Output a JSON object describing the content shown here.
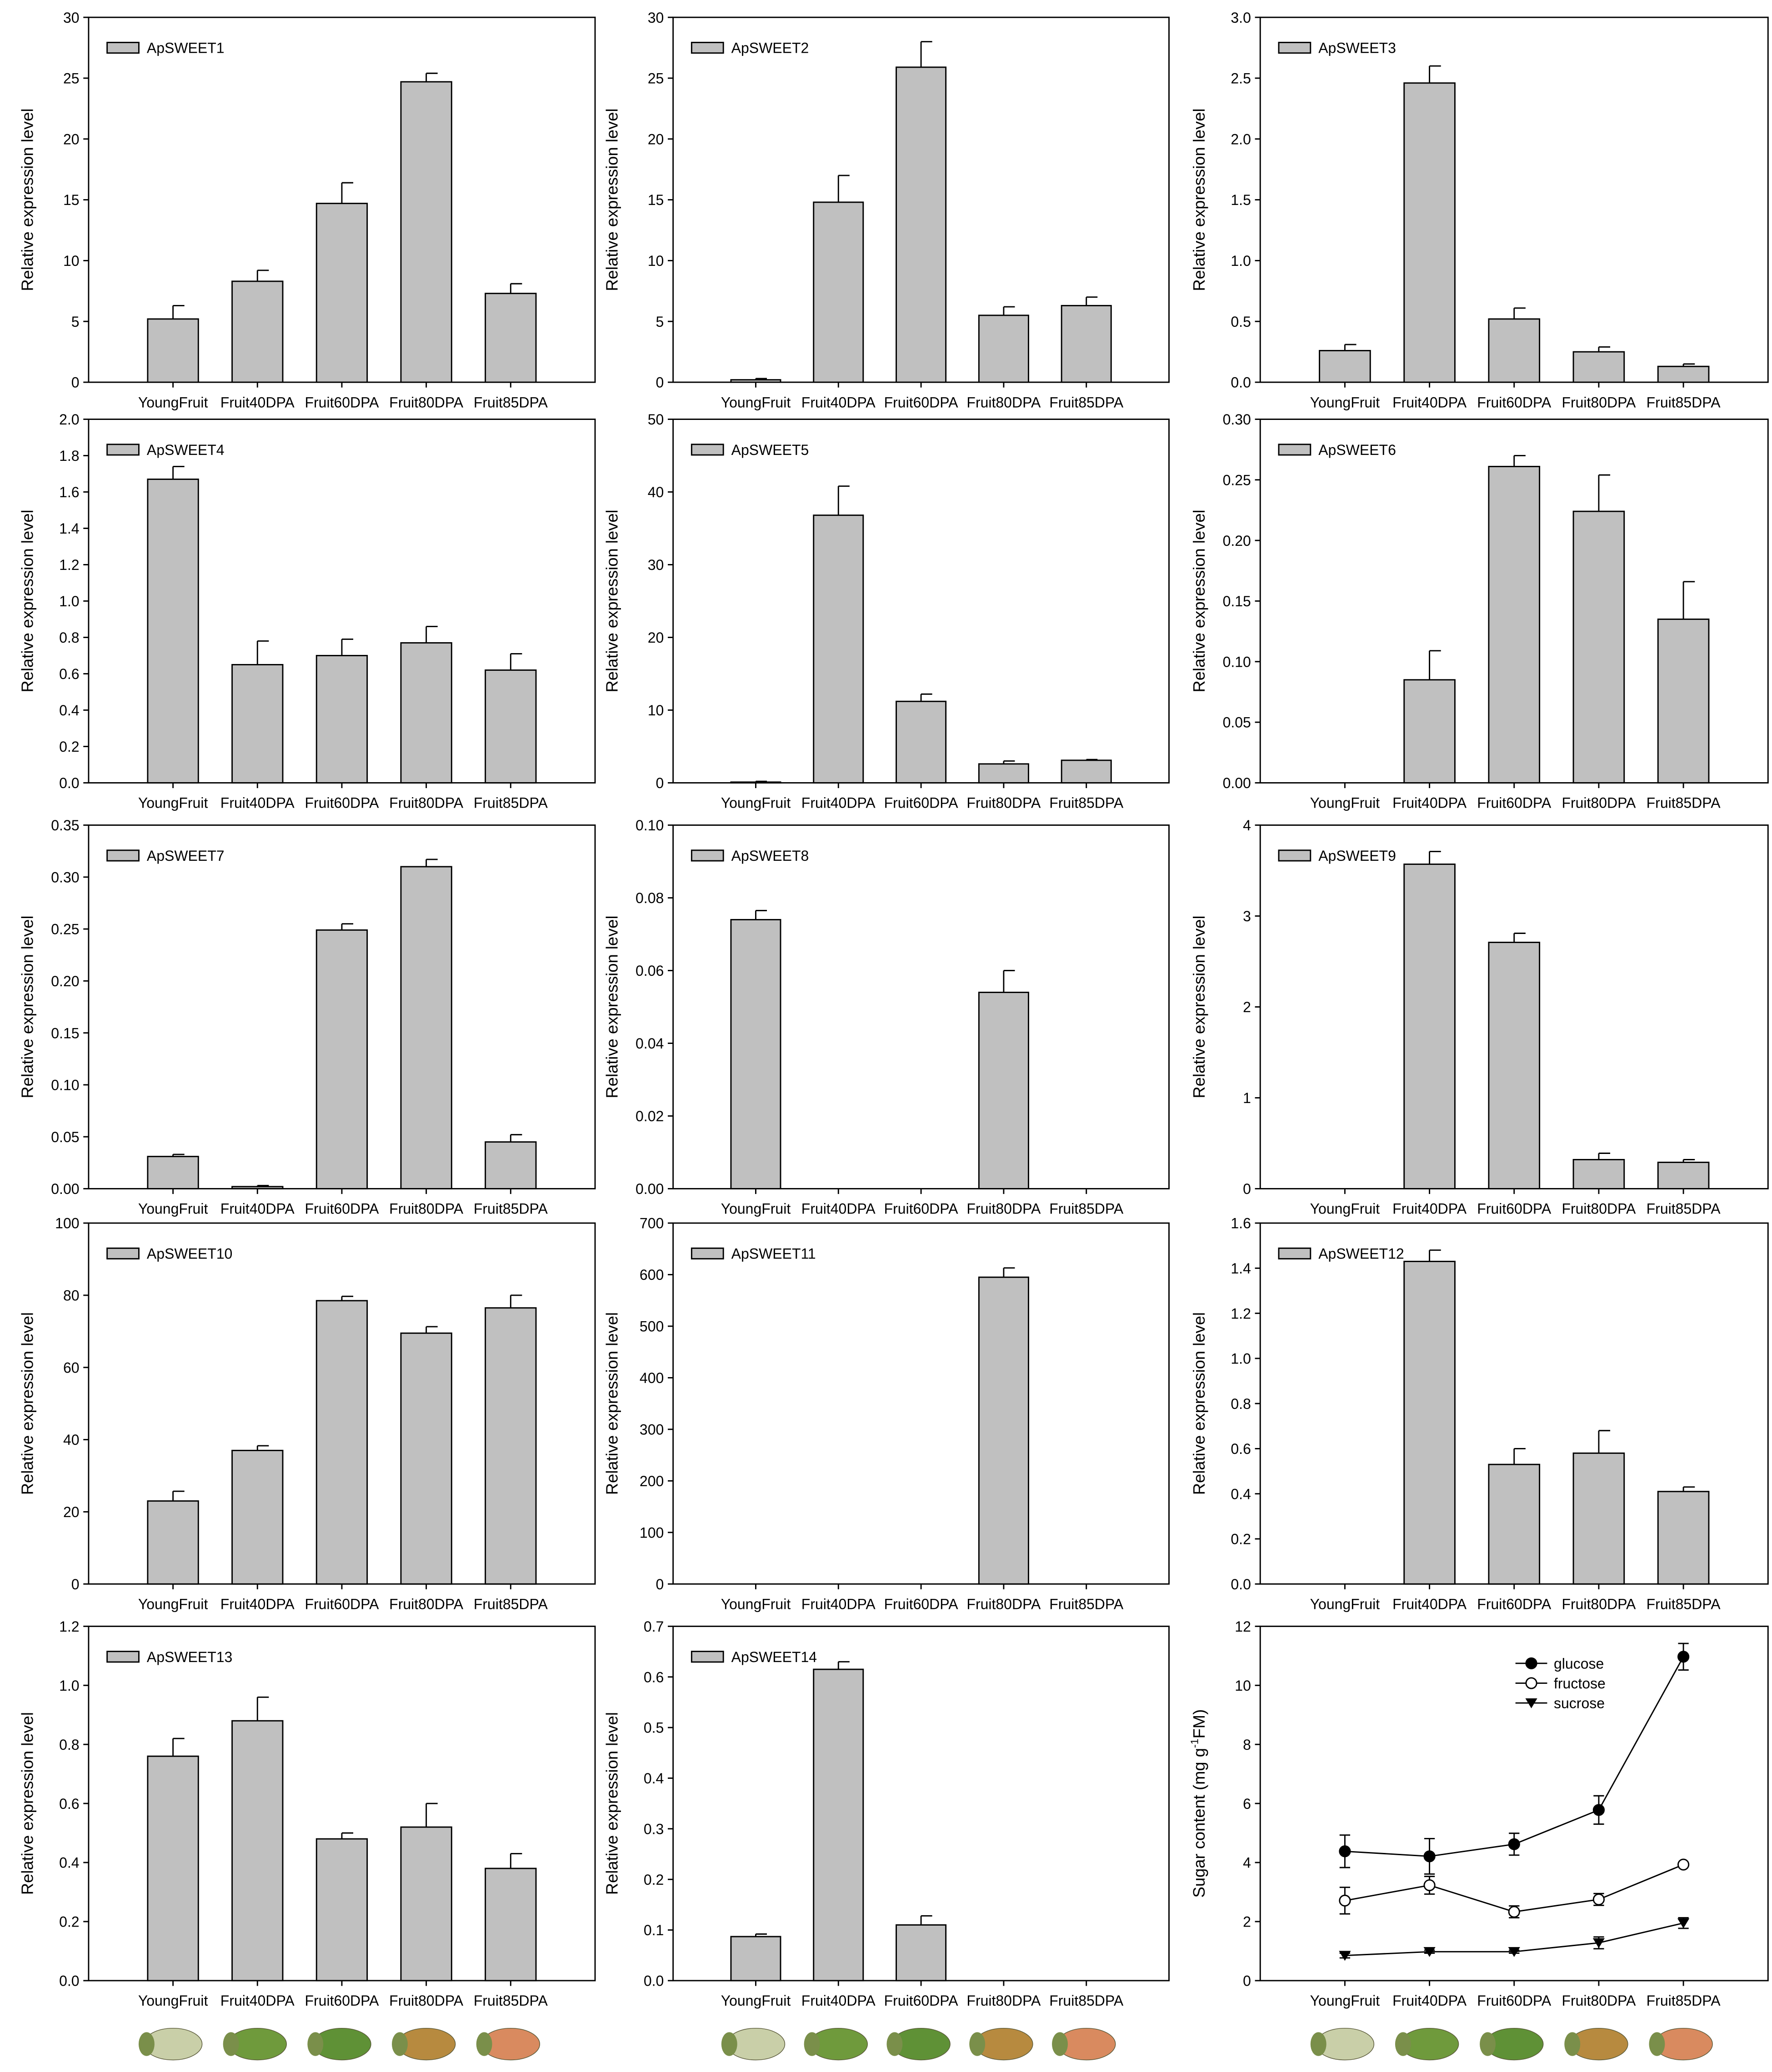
{
  "chart_data": [
    {
      "type": "bar",
      "legend": "ApSWEET1",
      "ylabel": "Relative expression level",
      "categories": [
        "YoungFruit",
        "Fruit40DPA",
        "Fruit60DPA",
        "Fruit80DPA",
        "Fruit85DPA"
      ],
      "ylim": [
        0,
        30
      ],
      "yticks": [
        "0",
        "5",
        "10",
        "15",
        "20",
        "25",
        "30"
      ],
      "values": [
        5.2,
        8.3,
        14.7,
        24.7,
        7.3
      ],
      "errors": [
        1.1,
        0.9,
        1.7,
        0.7,
        0.8
      ],
      "bar_color": "#c0c0c0"
    },
    {
      "type": "bar",
      "legend": "ApSWEET2",
      "ylabel": "Relative expression level",
      "categories": [
        "YoungFruit",
        "Fruit40DPA",
        "Fruit60DPA",
        "Fruit80DPA",
        "Fruit85DPA"
      ],
      "ylim": [
        0,
        30
      ],
      "yticks": [
        "0",
        "5",
        "10",
        "15",
        "20",
        "25",
        "30"
      ],
      "values": [
        0.2,
        14.8,
        25.9,
        5.5,
        6.3
      ],
      "errors": [
        0.1,
        2.2,
        2.1,
        0.7,
        0.7
      ],
      "bar_color": "#c0c0c0"
    },
    {
      "type": "bar",
      "legend": "ApSWEET3",
      "ylabel": "Relative expression level",
      "categories": [
        "YoungFruit",
        "Fruit40DPA",
        "Fruit60DPA",
        "Fruit80DPA",
        "Fruit85DPA"
      ],
      "ylim": [
        0,
        3
      ],
      "yticks": [
        "0.0",
        "0.5",
        "1.0",
        "1.5",
        "2.0",
        "2.5",
        "3.0"
      ],
      "values": [
        0.26,
        2.46,
        0.52,
        0.25,
        0.13
      ],
      "errors": [
        0.05,
        0.14,
        0.09,
        0.04,
        0.02
      ],
      "bar_color": "#c0c0c0"
    },
    {
      "type": "bar",
      "legend": "ApSWEET4",
      "ylabel": "Relative expression level",
      "categories": [
        "YoungFruit",
        "Fruit40DPA",
        "Fruit60DPA",
        "Fruit80DPA",
        "Fruit85DPA"
      ],
      "ylim": [
        0,
        2
      ],
      "yticks": [
        "0.0",
        "0.2",
        "0.4",
        "0.6",
        "0.8",
        "1.0",
        "1.2",
        "1.4",
        "1.6",
        "1.8",
        "2.0"
      ],
      "values": [
        1.67,
        0.65,
        0.7,
        0.77,
        0.62
      ],
      "errors": [
        0.07,
        0.13,
        0.09,
        0.09,
        0.09
      ],
      "bar_color": "#c0c0c0"
    },
    {
      "type": "bar",
      "legend": "ApSWEET5",
      "ylabel": "Relative expression level",
      "categories": [
        "YoungFruit",
        "Fruit40DPA",
        "Fruit60DPA",
        "Fruit80DPA",
        "Fruit85DPA"
      ],
      "ylim": [
        0,
        50
      ],
      "yticks": [
        "0",
        "10",
        "20",
        "30",
        "40",
        "50"
      ],
      "values": [
        0.1,
        36.8,
        11.2,
        2.6,
        3.1
      ],
      "errors": [
        0.1,
        4.0,
        1.0,
        0.4,
        0.1
      ],
      "bar_color": "#c0c0c0"
    },
    {
      "type": "bar",
      "legend": "ApSWEET6",
      "ylabel": "Relative expression level",
      "categories": [
        "YoungFruit",
        "Fruit40DPA",
        "Fruit60DPA",
        "Fruit80DPA",
        "Fruit85DPA"
      ],
      "ylim": [
        0,
        0.3
      ],
      "yticks": [
        "0.00",
        "0.05",
        "0.10",
        "0.15",
        "0.20",
        "0.25",
        "0.30"
      ],
      "values": [
        0,
        0.085,
        0.261,
        0.224,
        0.135
      ],
      "errors": [
        0,
        0.024,
        0.009,
        0.03,
        0.031
      ],
      "bar_color": "#c0c0c0"
    },
    {
      "type": "bar",
      "legend": "ApSWEET7",
      "ylabel": "Relative expression level",
      "categories": [
        "YoungFruit",
        "Fruit40DPA",
        "Fruit60DPA",
        "Fruit80DPA",
        "Fruit85DPA"
      ],
      "ylim": [
        0,
        0.35
      ],
      "yticks": [
        "0.00",
        "0.05",
        "0.10",
        "0.15",
        "0.20",
        "0.25",
        "0.30",
        "0.35"
      ],
      "values": [
        0.031,
        0.002,
        0.249,
        0.31,
        0.045
      ],
      "errors": [
        0.002,
        0.001,
        0.006,
        0.007,
        0.007
      ],
      "bar_color": "#c0c0c0"
    },
    {
      "type": "bar",
      "legend": "ApSWEET8",
      "ylabel": "Relative expression level",
      "categories": [
        "YoungFruit",
        "Fruit40DPA",
        "Fruit60DPA",
        "Fruit80DPA",
        "Fruit85DPA"
      ],
      "ylim": [
        0,
        0.1
      ],
      "yticks": [
        "0.00",
        "0.02",
        "0.04",
        "0.06",
        "0.08",
        "0.10"
      ],
      "values": [
        0.074,
        0,
        0,
        0.054,
        0
      ],
      "errors": [
        0.0025,
        0,
        0,
        0.006,
        0
      ],
      "bar_color": "#c0c0c0"
    },
    {
      "type": "bar",
      "legend": "ApSWEET9",
      "ylabel": "Relative expression level",
      "categories": [
        "YoungFruit",
        "Fruit40DPA",
        "Fruit60DPA",
        "Fruit80DPA",
        "Fruit85DPA"
      ],
      "ylim": [
        0,
        4
      ],
      "yticks": [
        "0",
        "1",
        "2",
        "3",
        "4"
      ],
      "values": [
        0,
        3.57,
        2.71,
        0.32,
        0.29
      ],
      "errors": [
        0,
        0.14,
        0.1,
        0.07,
        0.03
      ],
      "bar_color": "#c0c0c0"
    },
    {
      "type": "bar",
      "legend": "ApSWEET10",
      "ylabel": "Relative expression level",
      "categories": [
        "YoungFruit",
        "Fruit40DPA",
        "Fruit60DPA",
        "Fruit80DPA",
        "Fruit85DPA"
      ],
      "ylim": [
        0,
        100
      ],
      "yticks": [
        "0",
        "20",
        "40",
        "60",
        "80",
        "100"
      ],
      "values": [
        23,
        37,
        78.5,
        69.5,
        76.5
      ],
      "errors": [
        2.7,
        1.3,
        1.2,
        1.8,
        3.5
      ],
      "bar_color": "#c0c0c0"
    },
    {
      "type": "bar",
      "legend": "ApSWEET11",
      "ylabel": "Relative expression level",
      "categories": [
        "YoungFruit",
        "Fruit40DPA",
        "Fruit60DPA",
        "Fruit80DPA",
        "Fruit85DPA"
      ],
      "ylim": [
        0,
        700
      ],
      "yticks": [
        "0",
        "100",
        "200",
        "300",
        "400",
        "500",
        "600",
        "700"
      ],
      "values": [
        0,
        0,
        0,
        595,
        0
      ],
      "errors": [
        0,
        0,
        0,
        18,
        0
      ],
      "bar_color": "#c0c0c0"
    },
    {
      "type": "bar",
      "legend": "ApSWEET12",
      "ylabel": "Relative expression level",
      "categories": [
        "YoungFruit",
        "Fruit40DPA",
        "Fruit60DPA",
        "Fruit80DPA",
        "Fruit85DPA"
      ],
      "ylim": [
        0,
        1.6
      ],
      "yticks": [
        "0.0",
        "0.2",
        "0.4",
        "0.6",
        "0.8",
        "1.0",
        "1.2",
        "1.4",
        "1.6"
      ],
      "values": [
        0,
        1.43,
        0.53,
        0.58,
        0.41
      ],
      "errors": [
        0,
        0.05,
        0.07,
        0.1,
        0.02
      ],
      "bar_color": "#c0c0c0"
    },
    {
      "type": "bar",
      "legend": "ApSWEET13",
      "ylabel": "Relative expression level",
      "categories": [
        "YoungFruit",
        "Fruit40DPA",
        "Fruit60DPA",
        "Fruit80DPA",
        "Fruit85DPA"
      ],
      "ylim": [
        0,
        1.2
      ],
      "yticks": [
        "0.0",
        "0.2",
        "0.4",
        "0.6",
        "0.8",
        "1.0",
        "1.2"
      ],
      "values": [
        0.76,
        0.88,
        0.48,
        0.52,
        0.38
      ],
      "errors": [
        0.06,
        0.08,
        0.02,
        0.08,
        0.05
      ],
      "bar_color": "#c0c0c0"
    },
    {
      "type": "bar",
      "legend": "ApSWEET14",
      "ylabel": "Relative expression level",
      "categories": [
        "YoungFruit",
        "Fruit40DPA",
        "Fruit60DPA",
        "Fruit80DPA",
        "Fruit85DPA"
      ],
      "ylim": [
        0,
        0.7
      ],
      "yticks": [
        "0.0",
        "0.1",
        "0.2",
        "0.3",
        "0.4",
        "0.5",
        "0.6",
        "0.7"
      ],
      "values": [
        0.087,
        0.615,
        0.11,
        0,
        0
      ],
      "errors": [
        0.005,
        0.015,
        0.018,
        0,
        0
      ],
      "bar_color": "#c0c0c0"
    },
    {
      "type": "line",
      "ylabel": "Sugar content (mg g",
      "ylabel_sup": "-1",
      "ylabel_end": "FM)",
      "categories": [
        "YoungFruit",
        "Fruit40DPA",
        "Fruit60DPA",
        "Fruit80DPA",
        "Fruit85DPA"
      ],
      "ylim": [
        0,
        12
      ],
      "yticks": [
        "0",
        "2",
        "4",
        "6",
        "8",
        "10",
        "12"
      ],
      "legend_position": "top-right",
      "series": [
        {
          "name": "glucose",
          "marker": "filled-circle",
          "values": [
            4.38,
            4.21,
            4.62,
            5.78,
            10.97
          ],
          "errors": [
            0.55,
            0.6,
            0.37,
            0.48,
            0.45
          ]
        },
        {
          "name": "fructose",
          "marker": "open-circle",
          "values": [
            2.71,
            3.23,
            2.33,
            2.75,
            3.93
          ],
          "errors": [
            0.45,
            0.3,
            0.2,
            0.2,
            0.05
          ]
        },
        {
          "name": "sucrose",
          "marker": "filled-triangle-down",
          "values": [
            0.85,
            0.98,
            0.98,
            1.28,
            1.95
          ],
          "errors": [
            0.08,
            0.05,
            0.05,
            0.2,
            0.18
          ]
        }
      ]
    }
  ],
  "fruit_photos": {
    "colors": [
      "#c9cfa8",
      "#6f9a3c",
      "#5f9136",
      "#b78a3f",
      "#d98a5f"
    ]
  }
}
